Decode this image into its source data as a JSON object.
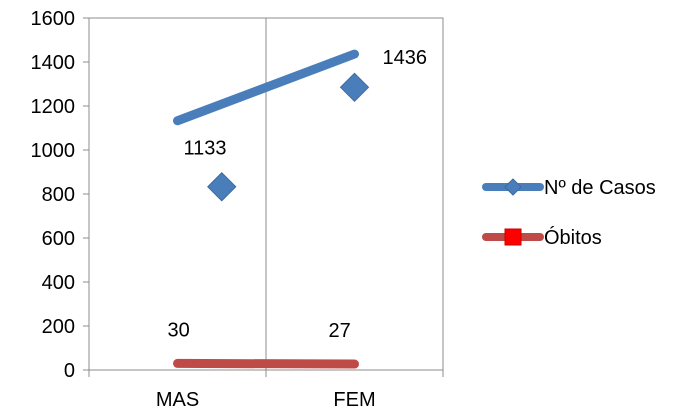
{
  "chart_data": {
    "type": "line",
    "categories": [
      "MAS",
      "FEM"
    ],
    "series": [
      {
        "name": "Nº de Casos",
        "values": [
          1133,
          1436
        ],
        "color": "#4a7ebb",
        "marker": "diamond"
      },
      {
        "name": "Óbitos",
        "values": [
          30,
          27
        ],
        "color": "#be4b48",
        "marker": "square",
        "marker_color": "#ff0000"
      }
    ],
    "data_labels": [
      "1133",
      "1436",
      "30",
      "27"
    ],
    "yticks": [
      "0",
      "200",
      "400",
      "600",
      "800",
      "1000",
      "1200",
      "1400",
      "1600"
    ],
    "ylim": [
      0,
      1600
    ],
    "grid": "vertical",
    "legend_position": "right",
    "stray_markers": [
      {
        "x_position": 1.5,
        "y": 833,
        "color": "#4a7ebb"
      },
      {
        "x_position": 3.0,
        "y": 1285,
        "color": "#4a7ebb"
      }
    ]
  }
}
